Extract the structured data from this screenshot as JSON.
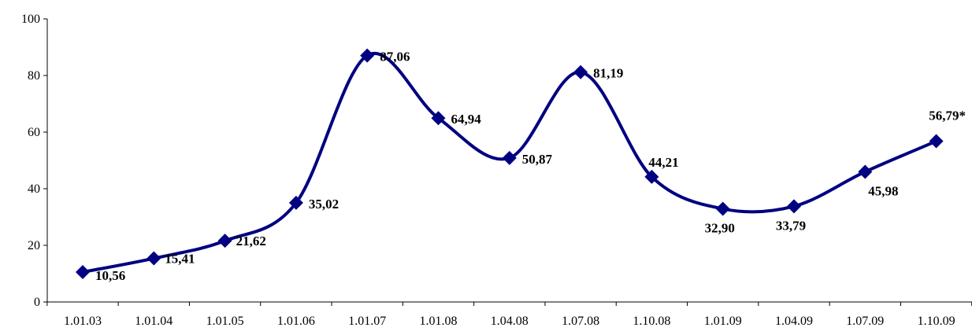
{
  "chart_data": {
    "type": "line",
    "categories": [
      "1.01.03",
      "1.01.04",
      "1.01.05",
      "1.01.06",
      "1.01.07",
      "1.01.08",
      "1.04.08",
      "1.07.08",
      "1.10.08",
      "1.01.09",
      "1.04.09",
      "1.07.09",
      "1.10.09"
    ],
    "series": [
      {
        "values": [
          10.56,
          15.41,
          21.62,
          35.02,
          87.06,
          64.94,
          50.87,
          81.19,
          44.21,
          32.9,
          33.79,
          45.98,
          56.79
        ],
        "labels": [
          "10,56",
          "15,41",
          "21,62",
          "35,02",
          "87,06",
          "64,94",
          "50,87",
          "81,19",
          "44,21",
          "32,90",
          "33,79",
          "45,98",
          "56,79*"
        ]
      }
    ],
    "y_ticks": [
      0,
      20,
      40,
      60,
      80,
      100
    ],
    "ylim": [
      0,
      100
    ],
    "grid": false,
    "legend": "none",
    "marker": "diamond",
    "line_style": "smooth",
    "color": "#000080"
  }
}
